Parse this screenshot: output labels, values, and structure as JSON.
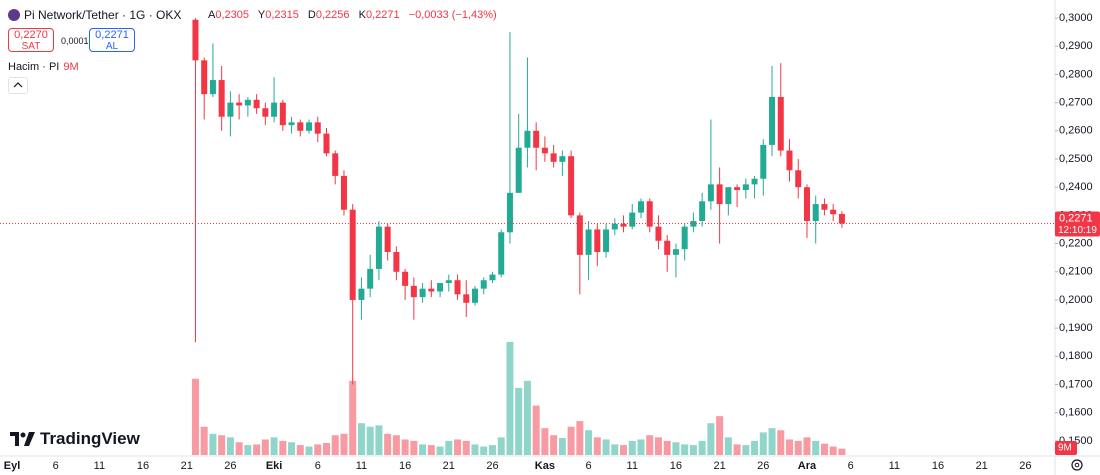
{
  "header": {
    "symbol": "Pi Network/Tether · 1G · OKX",
    "ohlc": [
      {
        "key": "A",
        "value": "0,2305"
      },
      {
        "key": "Y",
        "value": "0,2315"
      },
      {
        "key": "D",
        "value": "0,2256"
      },
      {
        "key": "K",
        "value": "0,2271"
      }
    ],
    "change": "−0,0033 (−1,43%)",
    "sell": {
      "price": "0,2270",
      "label": "SAT"
    },
    "spread": "0,0001",
    "buy": {
      "price": "0,2271",
      "label": "AL"
    },
    "volume_title": "Hacim · PI",
    "volume_value": "9M"
  },
  "logo": "TradingView",
  "chart_data": {
    "type": "candlestick",
    "categories": [
      "Eyl",
      null,
      null,
      null,
      null,
      "6",
      null,
      null,
      null,
      null,
      "11",
      null,
      null,
      null,
      null,
      "16",
      null,
      null,
      null,
      null,
      "21",
      null,
      null,
      null,
      null,
      "26",
      null,
      null,
      null,
      null,
      "Eki",
      null,
      null,
      null,
      null,
      "6",
      null,
      null,
      null,
      null,
      "11",
      null,
      null,
      null,
      null,
      "16",
      null,
      null,
      null,
      null,
      "21",
      null,
      null,
      null,
      null,
      "26",
      null,
      null,
      null,
      null,
      null,
      "Kas",
      null,
      null,
      null,
      null,
      "6",
      null,
      null,
      null,
      null,
      "11",
      null,
      null,
      null,
      null,
      "16",
      null,
      null,
      null,
      null,
      "21",
      null,
      null,
      null,
      null,
      "26",
      null,
      null,
      null,
      null,
      "Ara",
      null,
      null,
      null,
      null,
      "6",
      null,
      null,
      null,
      null,
      "11",
      null,
      null,
      null,
      null,
      "16",
      null,
      null,
      null,
      null,
      "21",
      null,
      null,
      null,
      null,
      "26",
      null,
      null
    ],
    "open": [
      null,
      null,
      null,
      null,
      null,
      null,
      null,
      null,
      null,
      null,
      null,
      null,
      null,
      null,
      null,
      null,
      null,
      null,
      null,
      null,
      null,
      0.2994,
      0.285,
      0.273,
      0.278,
      0.265,
      0.27,
      0.269,
      0.271,
      0.268,
      0.265,
      0.27,
      0.262,
      0.263,
      0.26,
      0.263,
      0.259,
      0.252,
      0.244,
      0.232,
      0.2,
      0.204,
      0.211,
      0.226,
      0.217,
      0.21,
      0.205,
      0.201,
      0.204,
      0.203,
      0.206,
      0.207,
      0.202,
      0.199,
      0.204,
      0.207,
      0.209,
      0.224,
      0.238,
      0.254,
      0.26,
      0.254,
      0.252,
      0.249,
      0.251,
      0.23,
      0.216,
      0.225,
      0.217,
      0.225,
      0.227,
      0.226,
      0.231,
      0.235,
      0.226,
      0.221,
      0.216,
      0.218,
      0.226,
      0.228,
      0.235,
      0.241,
      0.234,
      0.24,
      0.239,
      0.241,
      0.243,
      0.255,
      0.272,
      0.253,
      0.246,
      0.24,
      0.228,
      0.234,
      0.232,
      0.2305,
      null,
      null,
      null,
      null,
      null,
      null,
      null,
      null,
      null,
      null,
      null,
      null,
      null,
      null,
      null,
      null,
      null,
      null,
      null,
      null,
      null,
      null,
      null
    ],
    "high": [
      null,
      null,
      null,
      null,
      null,
      null,
      null,
      null,
      null,
      null,
      null,
      null,
      null,
      null,
      null,
      null,
      null,
      null,
      null,
      null,
      null,
      0.3,
      0.286,
      0.291,
      0.283,
      0.274,
      0.273,
      0.272,
      0.273,
      0.27,
      0.279,
      0.271,
      0.265,
      0.264,
      0.264,
      0.265,
      0.261,
      0.253,
      0.246,
      0.234,
      0.208,
      0.216,
      0.228,
      0.227,
      0.219,
      0.211,
      0.208,
      0.206,
      0.207,
      0.206,
      0.209,
      0.209,
      0.207,
      0.205,
      0.208,
      0.21,
      0.225,
      0.295,
      0.266,
      0.286,
      0.263,
      0.258,
      0.255,
      0.253,
      0.253,
      0.231,
      0.228,
      0.227,
      0.227,
      0.229,
      0.23,
      0.234,
      0.236,
      0.236,
      0.23,
      0.223,
      0.22,
      0.227,
      0.231,
      0.238,
      0.264,
      0.247,
      0.24,
      0.241,
      0.243,
      0.244,
      0.257,
      0.283,
      0.284,
      0.257,
      0.25,
      0.241,
      0.237,
      0.236,
      0.234,
      0.2315,
      null,
      null,
      null,
      null,
      null,
      null,
      null,
      null,
      null,
      null,
      null,
      null,
      null,
      null,
      null,
      null,
      null,
      null,
      null,
      null,
      null,
      null,
      null
    ],
    "low": [
      null,
      null,
      null,
      null,
      null,
      null,
      null,
      null,
      null,
      null,
      null,
      null,
      null,
      null,
      null,
      null,
      null,
      null,
      null,
      null,
      null,
      0.185,
      0.264,
      0.272,
      0.26,
      0.258,
      0.264,
      0.265,
      0.266,
      0.262,
      0.263,
      0.26,
      0.259,
      0.258,
      0.259,
      0.256,
      0.251,
      0.241,
      0.23,
      0.17,
      0.193,
      0.201,
      0.207,
      0.214,
      0.207,
      0.2,
      0.193,
      0.199,
      0.201,
      0.201,
      0.203,
      0.2,
      0.194,
      0.198,
      0.202,
      0.206,
      0.208,
      0.22,
      0.238,
      0.247,
      0.246,
      0.249,
      0.247,
      0.244,
      0.229,
      0.202,
      0.207,
      0.212,
      0.215,
      0.223,
      0.224,
      0.225,
      0.229,
      0.224,
      0.218,
      0.21,
      0.208,
      0.214,
      0.224,
      0.226,
      0.232,
      0.22,
      0.23,
      0.233,
      0.236,
      0.236,
      0.237,
      0.251,
      0.251,
      0.242,
      0.236,
      0.222,
      0.22,
      0.23,
      0.228,
      0.2256,
      null,
      null,
      null,
      null,
      null,
      null,
      null,
      null,
      null,
      null,
      null,
      null,
      null,
      null,
      null,
      null,
      null,
      null,
      null,
      null,
      null,
      null,
      null
    ],
    "close": [
      null,
      null,
      null,
      null,
      null,
      null,
      null,
      null,
      null,
      null,
      null,
      null,
      null,
      null,
      null,
      null,
      null,
      null,
      null,
      null,
      null,
      0.285,
      0.273,
      0.278,
      0.265,
      0.27,
      0.269,
      0.271,
      0.268,
      0.265,
      0.27,
      0.262,
      0.263,
      0.26,
      0.263,
      0.259,
      0.252,
      0.244,
      0.232,
      0.2,
      0.204,
      0.211,
      0.226,
      0.217,
      0.21,
      0.205,
      0.201,
      0.204,
      0.203,
      0.206,
      0.207,
      0.202,
      0.199,
      0.204,
      0.207,
      0.209,
      0.224,
      0.238,
      0.254,
      0.26,
      0.254,
      0.252,
      0.249,
      0.251,
      0.23,
      0.216,
      0.225,
      0.217,
      0.225,
      0.227,
      0.226,
      0.231,
      0.235,
      0.226,
      0.221,
      0.216,
      0.218,
      0.226,
      0.228,
      0.235,
      0.241,
      0.234,
      0.24,
      0.239,
      0.241,
      0.243,
      0.255,
      0.272,
      0.253,
      0.246,
      0.24,
      0.228,
      0.234,
      0.232,
      0.2304,
      0.2271,
      null,
      null,
      null,
      null,
      null,
      null,
      null,
      null,
      null,
      null,
      null,
      null,
      null,
      null,
      null,
      null,
      null,
      null,
      null,
      null,
      null,
      null,
      null
    ],
    "volume": [
      null,
      null,
      null,
      null,
      null,
      null,
      null,
      null,
      null,
      null,
      null,
      null,
      null,
      null,
      null,
      null,
      null,
      null,
      null,
      null,
      null,
      108,
      40,
      30,
      28,
      25,
      18,
      14,
      15,
      22,
      25,
      20,
      18,
      14,
      12,
      15,
      17,
      28,
      30,
      105,
      45,
      40,
      42,
      30,
      28,
      22,
      20,
      15,
      14,
      12,
      20,
      22,
      20,
      15,
      12,
      14,
      25,
      160,
      95,
      105,
      70,
      38,
      28,
      24,
      40,
      48,
      35,
      25,
      22,
      15,
      14,
      20,
      22,
      28,
      25,
      20,
      18,
      15,
      14,
      20,
      45,
      55,
      25,
      15,
      14,
      20,
      32,
      38,
      35,
      22,
      20,
      25,
      20,
      16,
      12,
      9,
      null,
      null,
      null,
      null,
      null,
      null,
      null,
      null,
      null,
      null,
      null,
      null,
      null,
      null,
      null,
      null,
      null,
      null,
      null,
      null,
      null,
      null,
      null
    ],
    "up_color": "#22ab94",
    "down_color": "#f23645",
    "ylim": [
      0.145,
      0.3064
    ],
    "yticks": [
      {
        "value": 0.15,
        "label": "0,1500"
      },
      {
        "value": 0.16,
        "label": "0,1600"
      },
      {
        "value": 0.17,
        "label": "0,1700"
      },
      {
        "value": 0.18,
        "label": "0,1800"
      },
      {
        "value": 0.19,
        "label": "0,1900"
      },
      {
        "value": 0.2,
        "label": "0,2000"
      },
      {
        "value": 0.21,
        "label": "0,2100"
      },
      {
        "value": 0.22,
        "label": "0,2200"
      },
      {
        "value": 0.23,
        "label": "0,2300"
      },
      {
        "value": 0.24,
        "label": "0,2400"
      },
      {
        "value": 0.25,
        "label": "0,2500"
      },
      {
        "value": 0.26,
        "label": "0,2600"
      },
      {
        "value": 0.27,
        "label": "0,2700"
      },
      {
        "value": 0.28,
        "label": "0,2800"
      },
      {
        "value": 0.29,
        "label": "0,2900"
      },
      {
        "value": 0.3,
        "label": "0,3000"
      }
    ],
    "grid": false,
    "last_price": {
      "value": 0.2271,
      "label": "0,2271"
    },
    "countdown": "12:10:19"
  }
}
